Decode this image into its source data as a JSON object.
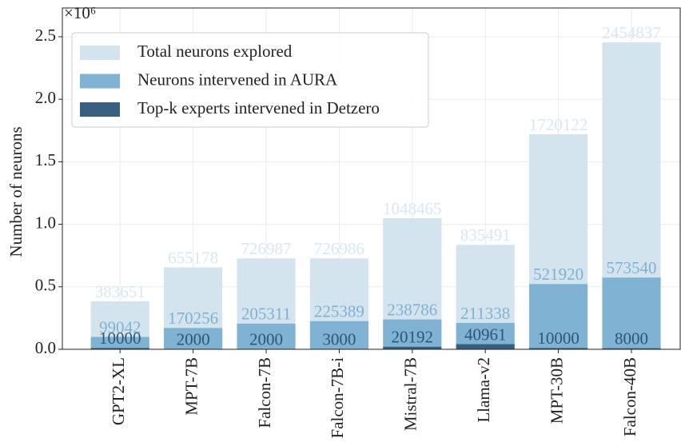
{
  "chart_data": {
    "type": "bar",
    "overlap": true,
    "y_label": "Number of neurons",
    "y_offset_text": "×10⁶",
    "categories": [
      "GPT2-XL",
      "MPT-7B",
      "Falcon-7B",
      "Falcon-7B-i",
      "Mistral-7B",
      "Llama-v2",
      "MPT-30B",
      "Falcon-40B"
    ],
    "series": [
      {
        "name": "Total neurons explored",
        "color": "#d3e4ef",
        "label_color": "#d8e7f1",
        "values": [
          383651,
          655178,
          726987,
          726986,
          1048465,
          835491,
          1720122,
          2454837
        ]
      },
      {
        "name": "Neurons intervened in AURA",
        "color": "#80b2d4",
        "label_color": "#7fb1d3",
        "values": [
          99042,
          170256,
          205311,
          225389,
          238786,
          211338,
          521920,
          573540
        ]
      },
      {
        "name": "Top-k experts intervened in Detzero",
        "color": "#365f80",
        "label_color": "#2f5574",
        "values": [
          10000,
          2000,
          2000,
          3000,
          20192,
          40961,
          10000,
          8000
        ]
      }
    ],
    "ylim": [
      0,
      2730000
    ],
    "yticks": [
      {
        "value": 0,
        "label": "0.0"
      },
      {
        "value": 500000,
        "label": "0.5"
      },
      {
        "value": 1000000,
        "label": "1.0"
      },
      {
        "value": 1500000,
        "label": "1.5"
      },
      {
        "value": 2000000,
        "label": "2.0"
      },
      {
        "value": 2500000,
        "label": "2.5"
      }
    ],
    "grid": true,
    "legend": "upper left"
  }
}
